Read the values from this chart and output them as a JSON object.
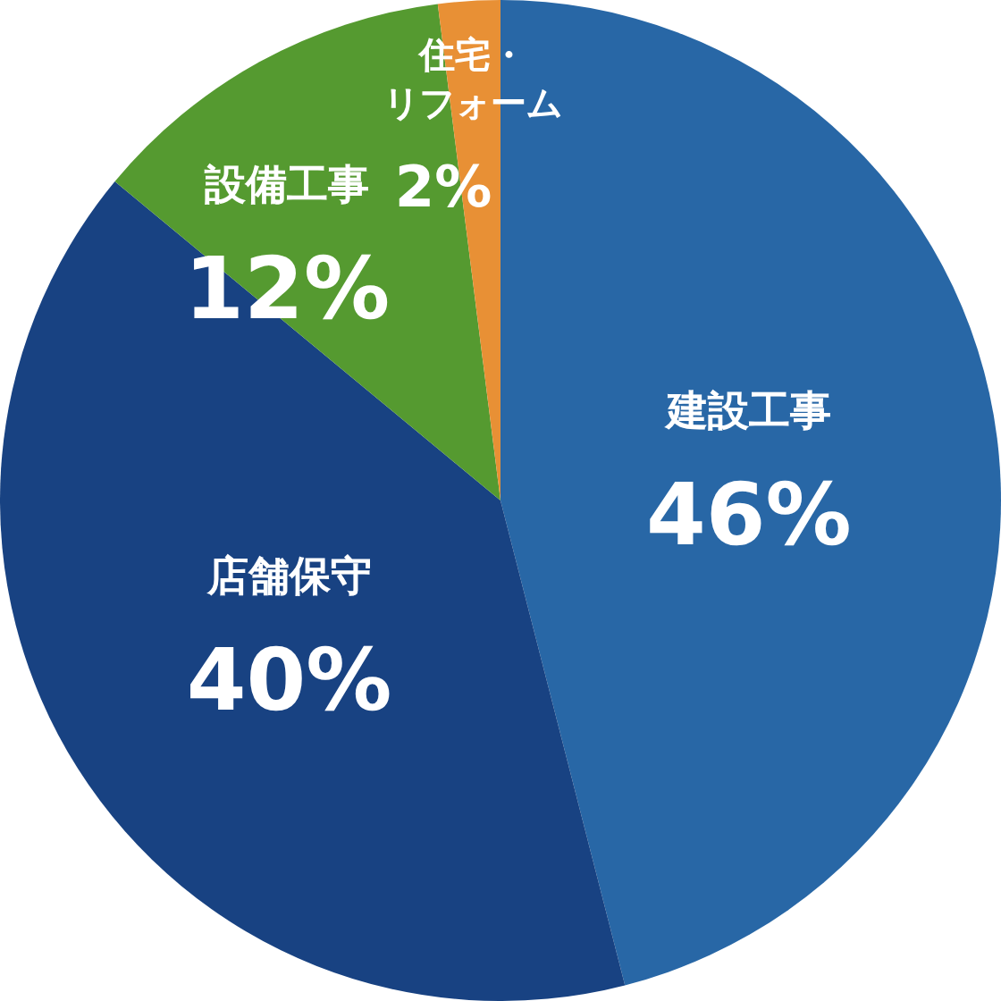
{
  "chart_data": {
    "type": "pie",
    "categories": [
      "建設工事",
      "店舗保守",
      "設備工事",
      "住宅・リフォーム"
    ],
    "values": [
      46,
      40,
      12,
      2
    ],
    "colors": [
      "#2867a6",
      "#184282",
      "#559a30",
      "#e89035"
    ],
    "value_labels": [
      "46%",
      "40%",
      "12%",
      "2%"
    ]
  }
}
